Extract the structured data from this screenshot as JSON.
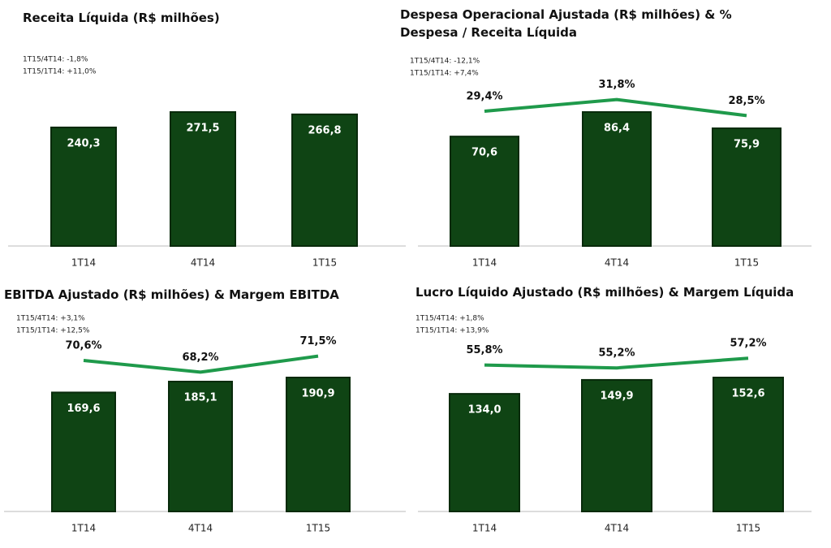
{
  "chart_data": [
    {
      "type": "bar",
      "title": "Receita Líquida (R$ milhões)",
      "annotations": [
        "1T15/4T14:  -1,8%",
        "1T15/1T14:  +11,0%"
      ],
      "categories": [
        "1T14",
        "4T14",
        "1T15"
      ],
      "series": [
        {
          "type": "bar",
          "color": "#0f4414",
          "values": [
            240.3,
            271.5,
            266.8
          ],
          "value_labels": [
            "240,3",
            "271,5",
            "266,8"
          ]
        }
      ]
    },
    {
      "type": "bar",
      "title": "Despesa Operacional Ajustada (R$ milhões) & % Despesa / Receita Líquida",
      "annotations": [
        "1T15/4T14:  -12,1%",
        "1T15/1T14:  +7,4%"
      ],
      "categories": [
        "1T14",
        "4T14",
        "1T15"
      ],
      "series": [
        {
          "type": "bar",
          "color": "#0f4414",
          "values": [
            70.6,
            86.4,
            75.9
          ],
          "value_labels": [
            "70,6",
            "86,4",
            "75,9"
          ]
        },
        {
          "type": "line",
          "axis": "y2",
          "color": "#1f9a4b",
          "values": [
            29.4,
            31.8,
            28.5
          ],
          "value_labels": [
            "29,4%",
            "31,8%",
            "28,5%"
          ]
        }
      ]
    },
    {
      "type": "bar",
      "title": "EBITDA Ajustado (R$ milhões) & Margem EBITDA",
      "annotations": [
        "1T15/4T14:  +3,1%",
        "1T15/1T14:  +12,5%"
      ],
      "categories": [
        "1T14",
        "4T14",
        "1T15"
      ],
      "series": [
        {
          "type": "bar",
          "color": "#0f4414",
          "values": [
            169.6,
            185.1,
            190.9
          ],
          "value_labels": [
            "169,6",
            "185,1",
            "190,9"
          ]
        },
        {
          "type": "line",
          "axis": "y2",
          "color": "#1f9a4b",
          "values": [
            70.6,
            68.2,
            71.5
          ],
          "value_labels": [
            "70,6%",
            "68,2%",
            "71,5%"
          ]
        }
      ]
    },
    {
      "type": "bar",
      "title": "Lucro Líquido Ajustado (R$ milhões) &  Margem Líquida",
      "annotations": [
        "1T15/4T14:  +1,8%",
        "1T15/1T14:  +13,9%"
      ],
      "categories": [
        "1T14",
        "4T14",
        "1T15"
      ],
      "series": [
        {
          "type": "bar",
          "color": "#0f4414",
          "values": [
            134.0,
            149.9,
            152.6
          ],
          "value_labels": [
            "134,0",
            "149,9",
            "152,6"
          ]
        },
        {
          "type": "line",
          "axis": "y2",
          "color": "#1f9a4b",
          "values": [
            55.8,
            55.2,
            57.2
          ],
          "value_labels": [
            "55,8%",
            "55,2%",
            "57,2%"
          ]
        }
      ]
    }
  ]
}
